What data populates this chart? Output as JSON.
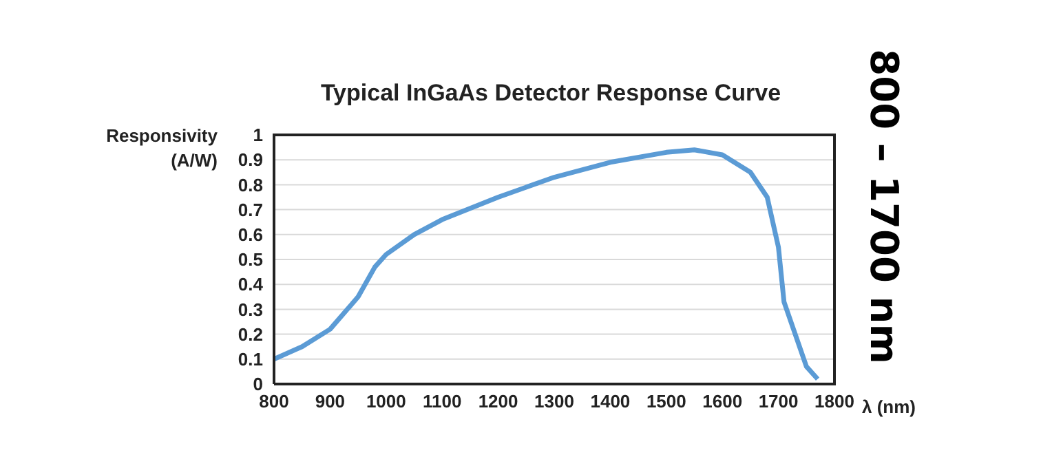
{
  "chart_data": {
    "type": "line",
    "title": "Typical InGaAs Detector Response Curve",
    "xlabel": "λ (nm)",
    "ylabel": "Responsivity (A/W)",
    "annotations": [
      "800 – 1700 nm"
    ],
    "x": [
      800,
      850,
      900,
      950,
      980,
      1000,
      1050,
      1100,
      1200,
      1300,
      1400,
      1500,
      1550,
      1600,
      1650,
      1680,
      1700,
      1710,
      1730,
      1750,
      1770
    ],
    "series": [
      {
        "color": "#5b9bd5",
        "values": [
          0.1,
          0.15,
          0.22,
          0.35,
          0.47,
          0.52,
          0.6,
          0.66,
          0.75,
          0.83,
          0.89,
          0.93,
          0.94,
          0.92,
          0.85,
          0.75,
          0.55,
          0.33,
          0.2,
          0.07,
          0.02
        ]
      }
    ],
    "xlim": [
      800,
      1800
    ],
    "xticks": [
      800,
      900,
      1000,
      1100,
      1200,
      1300,
      1400,
      1500,
      1600,
      1700,
      1800
    ],
    "ylim": [
      0,
      1
    ],
    "yticks": [
      0,
      0.1,
      0.2,
      0.3,
      0.4,
      0.5,
      0.6,
      0.7,
      0.8,
      0.9,
      1
    ],
    "grid": "y",
    "legend": false,
    "marker": "none",
    "line_style": "solid"
  }
}
